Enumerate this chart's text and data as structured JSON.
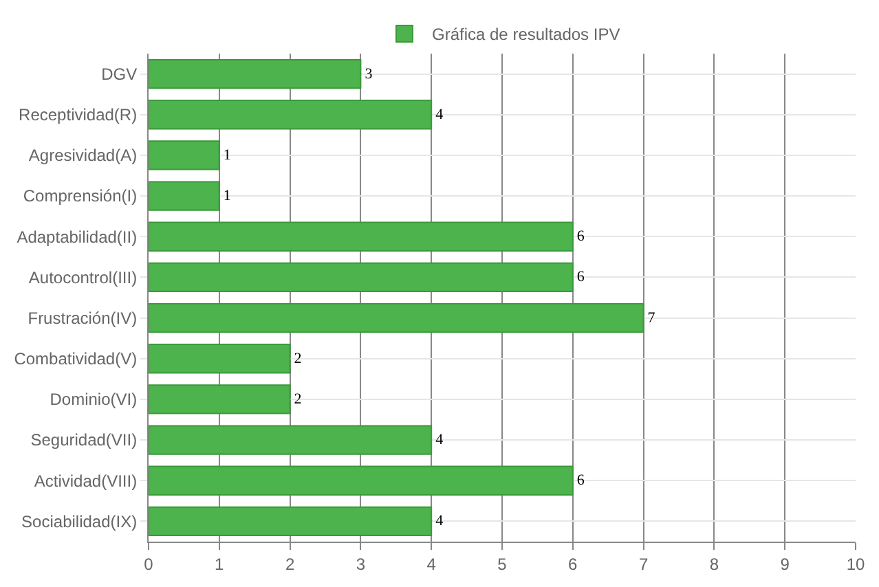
{
  "chart_data": {
    "type": "bar",
    "orientation": "horizontal",
    "categories": [
      "DGV",
      "Receptividad(R)",
      "Agresividad(A)",
      "Comprensión(I)",
      "Adaptabilidad(II)",
      "Autocontrol(III)",
      "Frustración(IV)",
      "Combatividad(V)",
      "Dominio(VI)",
      "Seguridad(VII)",
      "Actividad(VIII)",
      "Sociabilidad(IX)"
    ],
    "series": [
      {
        "name": "Gráfica de resultados IPV",
        "color": "#4db34d",
        "values": [
          3,
          4,
          1,
          1,
          6,
          6,
          7,
          2,
          2,
          4,
          6,
          4
        ]
      }
    ],
    "xlim": [
      0,
      10
    ],
    "xticks": [
      0,
      1,
      2,
      3,
      4,
      5,
      6,
      7,
      8,
      9,
      10
    ],
    "grid": true,
    "legend": "top",
    "data_labels": true
  }
}
